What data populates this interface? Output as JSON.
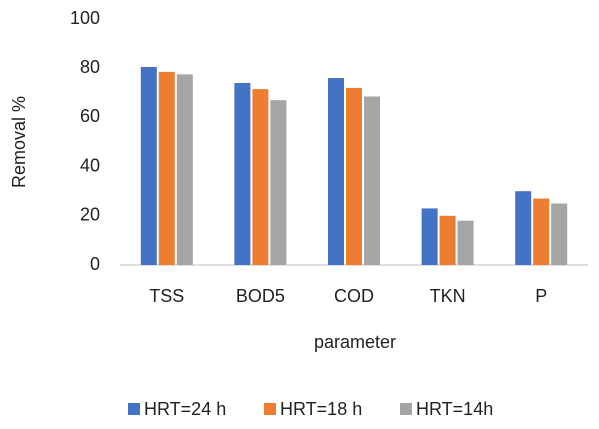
{
  "chart_data": {
    "type": "bar",
    "categories": [
      "TSS",
      "BOD5",
      "COD",
      "TKN",
      "P"
    ],
    "series": [
      {
        "name": "HRT=24 h",
        "color": "#4472c4",
        "values": [
          80.5,
          74,
          76,
          23,
          30
        ]
      },
      {
        "name": "HRT=18 h",
        "color": "#ed7d31",
        "values": [
          78.5,
          71.5,
          72,
          20,
          27
        ]
      },
      {
        "name": "HRT=14h",
        "color": "#a5a5a5",
        "values": [
          77.5,
          67,
          68.5,
          18,
          25
        ]
      }
    ],
    "xlabel": "parameter",
    "ylabel": "Removal %",
    "ylim": [
      0,
      100
    ],
    "yticks": [
      0,
      20,
      40,
      60,
      80,
      100
    ],
    "grid": false,
    "legend": "bottom"
  }
}
